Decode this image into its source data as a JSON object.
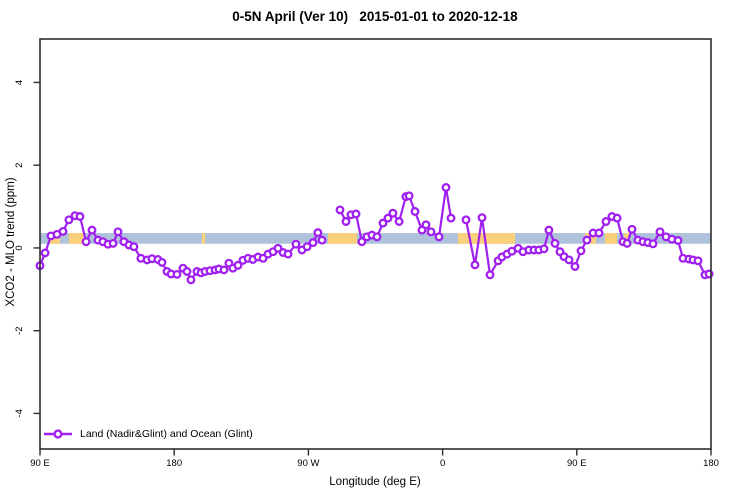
{
  "chart_data": {
    "type": "line",
    "title": "0-5N April (Ver 10)   2015-01-01 to 2020-12-18",
    "xlabel": "Longitude (deg E)",
    "ylabel": "XCO2 - MLO trend (ppm)",
    "legend": [
      "Land (Nadir&Glint) and Ocean (Glint)"
    ],
    "legend_position": "bottom-left-inside",
    "grid": false,
    "xlim": [
      90,
      540
    ],
    "ylim": [
      -4.86,
      5.05
    ],
    "x_ticks": [
      {
        "lon": 90,
        "label": "90 E"
      },
      {
        "lon": 180,
        "label": "180"
      },
      {
        "lon": 270,
        "label": "90 W"
      },
      {
        "lon": 360,
        "label": "0"
      },
      {
        "lon": 450,
        "label": "90 E"
      },
      {
        "lon": 540,
        "label": "180"
      }
    ],
    "y_ticks": [
      {
        "v": -4,
        "label": "-4"
      },
      {
        "v": -2,
        "label": "-2"
      },
      {
        "v": 0,
        "label": "0"
      },
      {
        "v": 2,
        "label": "2"
      },
      {
        "v": 4,
        "label": "4"
      }
    ],
    "band": {
      "y_low": 0.1,
      "y_high": 0.36,
      "blue_range": [
        90,
        540
      ],
      "orange_ranges": [
        [
          95.4,
          103.4
        ],
        [
          109.4,
          119.5
        ],
        [
          198.6,
          200.7
        ],
        [
          283.1,
          302.6
        ],
        [
          370.3,
          408.6
        ],
        [
          455.5,
          462.9
        ],
        [
          468.9,
          477.0
        ],
        [
          481.7,
          485.0
        ]
      ]
    },
    "series_name": "Land (Nadir&Glint) and Ocean (Glint)",
    "segments": [
      {
        "points": [
          [
            90.0,
            -0.43
          ],
          [
            93.4,
            -0.12
          ],
          [
            97.4,
            0.29
          ],
          [
            101.4,
            0.33
          ],
          [
            105.4,
            0.4
          ],
          [
            109.4,
            0.68
          ],
          [
            113.5,
            0.78
          ],
          [
            116.8,
            0.76
          ],
          [
            120.9,
            0.15
          ],
          [
            124.9,
            0.43
          ],
          [
            128.9,
            0.19
          ],
          [
            132.2,
            0.15
          ],
          [
            135.6,
            0.09
          ],
          [
            139.0,
            0.11
          ],
          [
            142.3,
            0.39
          ],
          [
            146.3,
            0.15
          ],
          [
            149.7,
            0.07
          ],
          [
            153.0,
            0.03
          ],
          [
            157.7,
            -0.25
          ],
          [
            161.8,
            -0.29
          ],
          [
            165.1,
            -0.26
          ],
          [
            169.1,
            -0.28
          ],
          [
            171.8,
            -0.35
          ],
          [
            175.2,
            -0.57
          ],
          [
            177.9,
            -0.63
          ],
          [
            181.9,
            -0.64
          ],
          [
            185.9,
            -0.49
          ],
          [
            188.6,
            -0.57
          ],
          [
            191.3,
            -0.77
          ],
          [
            195.3,
            -0.57
          ],
          [
            198.0,
            -0.6
          ],
          [
            200.7,
            -0.57
          ],
          [
            204.0,
            -0.55
          ],
          [
            207.4,
            -0.53
          ],
          [
            210.0,
            -0.51
          ],
          [
            213.4,
            -0.53
          ],
          [
            216.7,
            -0.37
          ],
          [
            219.4,
            -0.49
          ],
          [
            222.8,
            -0.42
          ],
          [
            226.1,
            -0.3
          ],
          [
            229.5,
            -0.25
          ],
          [
            232.8,
            -0.28
          ],
          [
            236.2,
            -0.22
          ],
          [
            239.6,
            -0.25
          ],
          [
            242.9,
            -0.15
          ],
          [
            246.3,
            -0.09
          ],
          [
            249.6,
            -0.01
          ],
          [
            253.0,
            -0.11
          ],
          [
            256.3,
            -0.15
          ],
          [
            261.7,
            0.09
          ],
          [
            265.7,
            -0.05
          ],
          [
            269.1,
            0.03
          ],
          [
            273.1,
            0.13
          ],
          [
            276.4,
            0.37
          ],
          [
            279.1,
            0.19
          ]
        ]
      },
      {
        "points": [
          [
            291.2,
            0.92
          ],
          [
            295.2,
            0.64
          ],
          [
            298.6,
            0.8
          ],
          [
            301.9,
            0.82
          ],
          [
            305.9,
            0.15
          ],
          [
            309.3,
            0.27
          ],
          [
            312.6,
            0.31
          ],
          [
            316.0,
            0.27
          ],
          [
            320.0,
            0.6
          ],
          [
            323.4,
            0.72
          ],
          [
            326.7,
            0.84
          ],
          [
            330.8,
            0.64
          ],
          [
            335.4,
            1.24
          ],
          [
            337.5,
            1.26
          ],
          [
            341.5,
            0.88
          ],
          [
            346.2,
            0.43
          ],
          [
            348.9,
            0.56
          ],
          [
            352.2,
            0.39
          ],
          [
            357.6,
            0.27
          ],
          [
            362.3,
            1.46
          ],
          [
            365.6,
            0.72
          ]
        ]
      },
      {
        "points": [
          [
            375.7,
            0.68
          ],
          [
            381.7,
            -0.41
          ],
          [
            386.4,
            0.73
          ],
          [
            391.8,
            -0.65
          ],
          [
            397.2,
            -0.31
          ],
          [
            399.8,
            -0.22
          ],
          [
            403.2,
            -0.15
          ],
          [
            406.5,
            -0.08
          ],
          [
            410.6,
            -0.01
          ],
          [
            413.9,
            -0.09
          ],
          [
            417.9,
            -0.05
          ],
          [
            421.3,
            -0.05
          ],
          [
            424.6,
            -0.05
          ],
          [
            428.0,
            -0.02
          ],
          [
            431.3,
            0.43
          ],
          [
            435.4,
            0.11
          ],
          [
            438.7,
            -0.09
          ],
          [
            441.4,
            -0.21
          ],
          [
            444.8,
            -0.29
          ],
          [
            448.8,
            -0.45
          ],
          [
            452.8,
            -0.07
          ],
          [
            456.8,
            0.19
          ],
          [
            460.9,
            0.36
          ],
          [
            464.9,
            0.36
          ],
          [
            469.6,
            0.64
          ],
          [
            473.6,
            0.76
          ],
          [
            477.0,
            0.72
          ],
          [
            481.0,
            0.15
          ],
          [
            483.7,
            0.11
          ],
          [
            487.0,
            0.45
          ],
          [
            491.0,
            0.19
          ],
          [
            494.4,
            0.15
          ],
          [
            497.7,
            0.13
          ],
          [
            501.1,
            0.1
          ],
          [
            505.8,
            0.39
          ],
          [
            509.8,
            0.27
          ],
          [
            513.8,
            0.21
          ],
          [
            517.9,
            0.18
          ],
          [
            521.2,
            -0.25
          ],
          [
            525.2,
            -0.27
          ],
          [
            527.9,
            -0.29
          ],
          [
            531.3,
            -0.31
          ],
          [
            536.0,
            -0.65
          ],
          [
            538.7,
            -0.63
          ]
        ]
      }
    ],
    "colors": {
      "series": "#A020F0",
      "marker_fill": "#FFFFFF",
      "band_blue": "#AEC3DB",
      "band_orange": "#FBD07C",
      "axis": "#2E2E2E",
      "text": "#000000",
      "background": "#FFFFFF"
    }
  }
}
